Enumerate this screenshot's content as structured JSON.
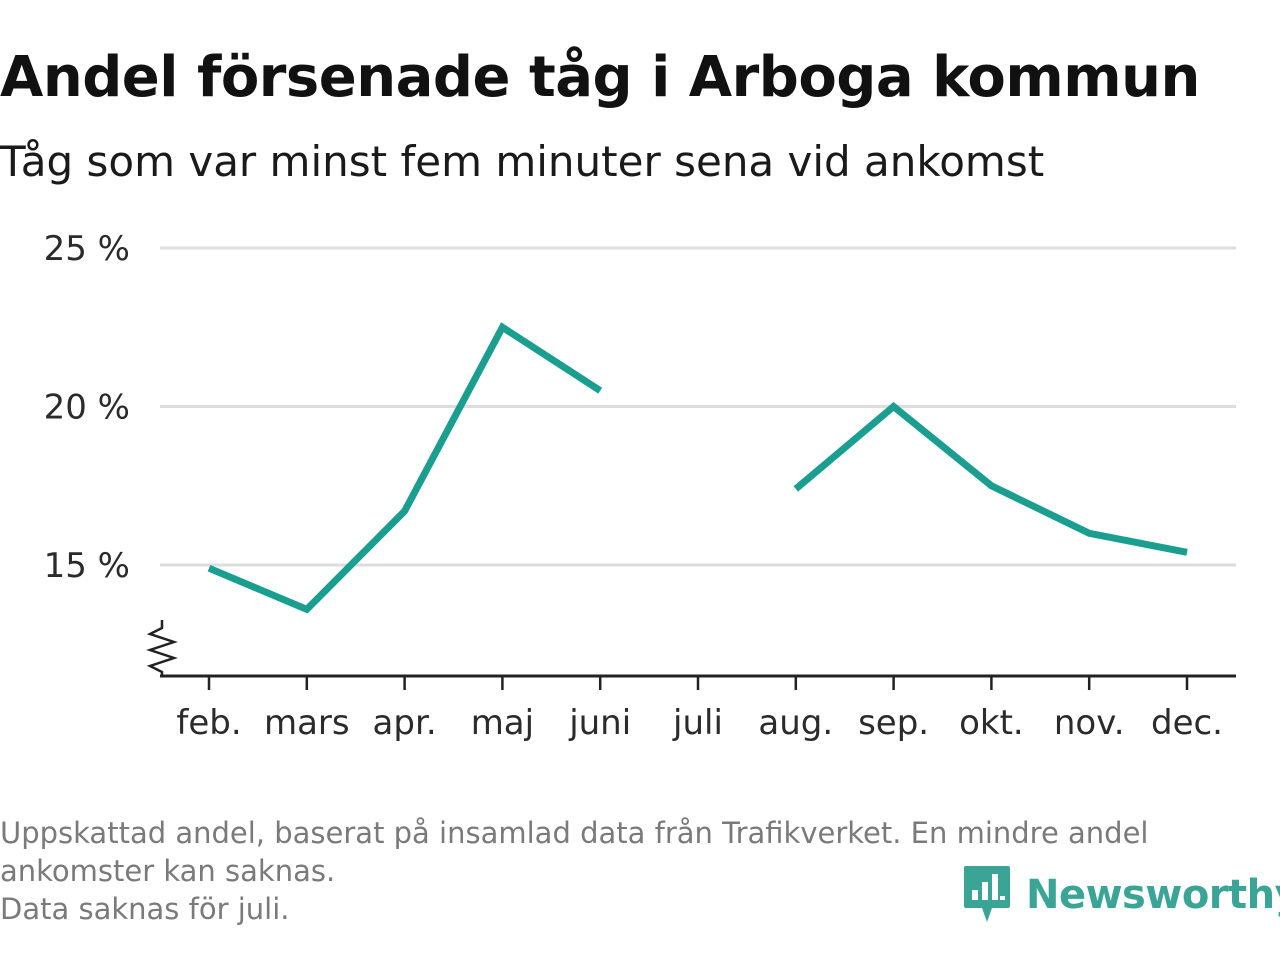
{
  "title": "Andel försenade tåg i Arboga kommun",
  "subtitle": "Tåg som var minst fem minuter sena vid ankomst",
  "footer": {
    "note_line1": "Uppskattad andel, baserat på insamlad data från Trafikverket. En mindre andel",
    "note_line2": "ankomster kan saknas.",
    "note_line3": "Data saknas för juli."
  },
  "logo": {
    "text": "Newsworthy",
    "icon": "newsworthy-logo-icon",
    "color": "#3aa597"
  },
  "colors": {
    "line": "#1a9e8f",
    "grid": "#dddddd",
    "axis": "#222222",
    "footer_text": "#7a7a7a"
  },
  "chart_data": {
    "type": "line",
    "title": "Andel försenade tåg i Arboga kommun",
    "subtitle": "Tåg som var minst fem minuter sena vid ankomst",
    "xlabel": "",
    "ylabel": "",
    "categories": [
      "feb.",
      "mars",
      "apr.",
      "maj",
      "juni",
      "juli",
      "aug.",
      "sep.",
      "okt.",
      "nov.",
      "dec."
    ],
    "series": [
      {
        "values": [
          14.9,
          13.6,
          16.7,
          22.5,
          20.5,
          null,
          17.4,
          20.0,
          17.5,
          16.0,
          15.4
        ]
      }
    ],
    "y_ticks": [
      15,
      20,
      25
    ],
    "y_tick_labels": [
      "15 %",
      "20 %",
      "25 %"
    ],
    "ylim": [
      11.5,
      25
    ],
    "y_axis_break": true,
    "grid": true,
    "legend": "none"
  }
}
